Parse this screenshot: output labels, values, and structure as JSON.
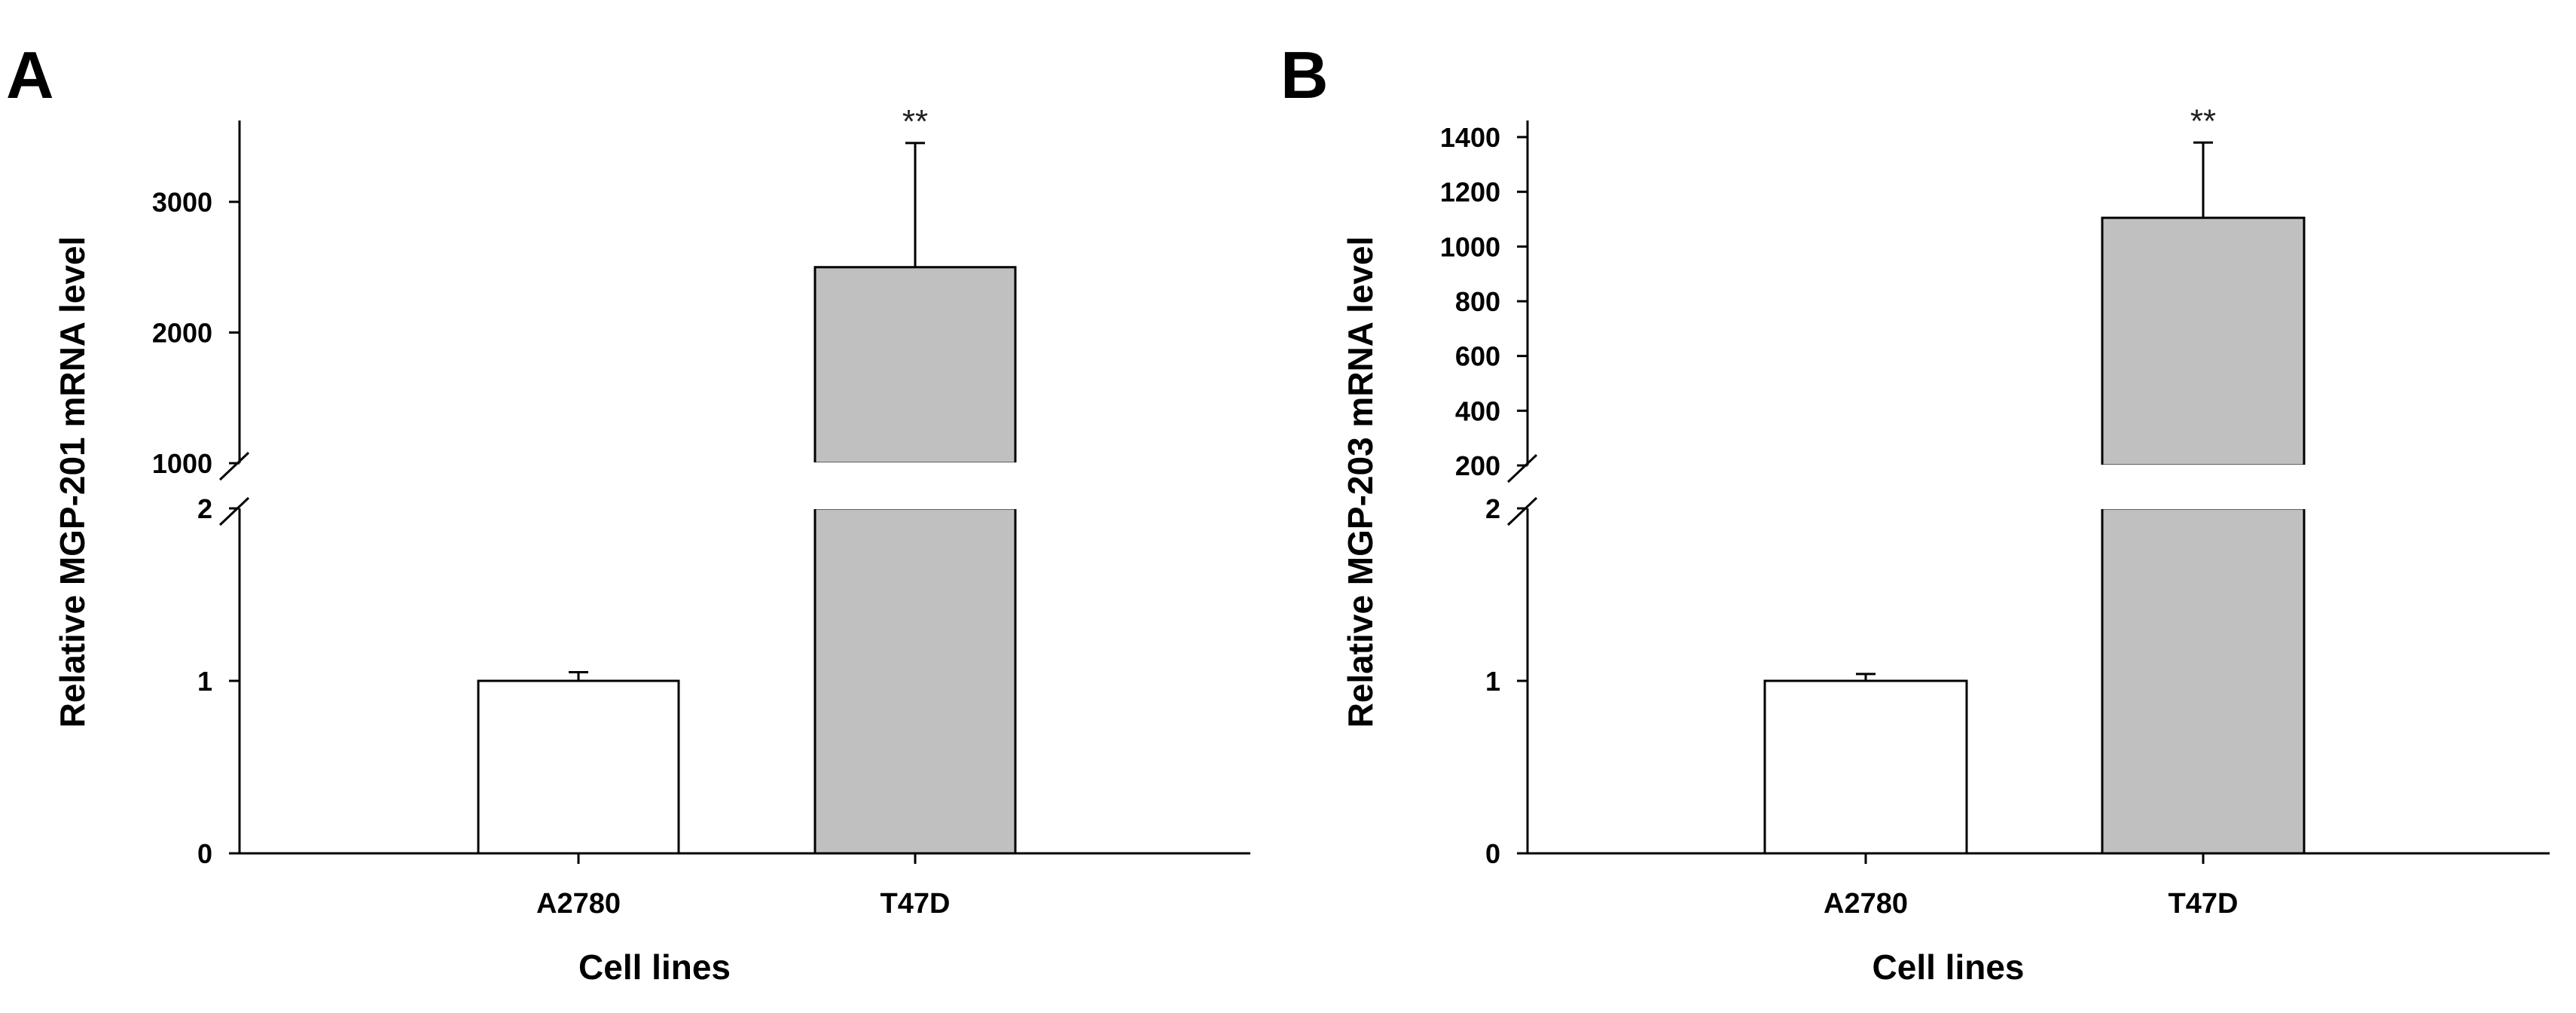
{
  "chart_data": [
    {
      "panel": "A",
      "type": "bar",
      "title": "",
      "xlabel": "Cell lines",
      "ylabel": "Relative MGP-201 mRNA level",
      "categories": [
        "A2780",
        "T47D"
      ],
      "values": [
        1,
        2500
      ],
      "errors": [
        0.05,
        950
      ],
      "significance": [
        "",
        "**"
      ],
      "bar_colors": [
        "#ffffff",
        "#c0c0c0"
      ],
      "axis_break": true,
      "lower_segment": {
        "ylim": [
          0,
          2
        ],
        "ticks": [
          0,
          1,
          2
        ],
        "tick_labels": [
          "0",
          "1",
          "2"
        ]
      },
      "upper_segment": {
        "ylim": [
          1000,
          3600
        ],
        "ticks": [
          1000,
          2000,
          3000
        ],
        "tick_labels": [
          "1000",
          "2000",
          "3000"
        ]
      }
    },
    {
      "panel": "B",
      "type": "bar",
      "title": "",
      "xlabel": "Cell lines",
      "ylabel": "Relative MGP-203 mRNA level",
      "categories": [
        "A2780",
        "T47D"
      ],
      "values": [
        1,
        1105
      ],
      "errors": [
        0.04,
        275
      ],
      "significance": [
        "",
        "**"
      ],
      "bar_colors": [
        "#ffffff",
        "#c0c0c0"
      ],
      "axis_break": true,
      "lower_segment": {
        "ylim": [
          0,
          2
        ],
        "ticks": [
          0,
          1,
          2
        ],
        "tick_labels": [
          "0",
          "1",
          "2"
        ]
      },
      "upper_segment": {
        "ylim": [
          200,
          1450
        ],
        "ticks": [
          200,
          400,
          600,
          800,
          1000,
          1200,
          1400
        ],
        "tick_labels": [
          "200",
          "400",
          "600",
          "800",
          "1000",
          "1200",
          "1400"
        ]
      }
    }
  ]
}
